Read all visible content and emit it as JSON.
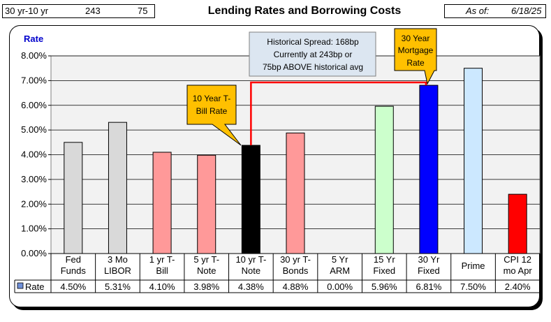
{
  "header": {
    "spread_label": "30 yr-10 yr",
    "spread_current": "243",
    "spread_above": "75",
    "title": "Lending Rates and Borrowing Costs",
    "asof_label": "As of:",
    "asof_date": "6/18/25"
  },
  "colors": {
    "light_gray": "#d9d9d9",
    "pink": "#ff9999",
    "black": "#000000",
    "light_green": "#ccffcc",
    "blue": "#0000ff",
    "light_blue": "#cce8ff",
    "red": "#ff0000",
    "callout_orange": "#ffc000",
    "note_blue": "#dce6f1",
    "spread_line": "#ff0000"
  },
  "chart_data": {
    "type": "bar",
    "ylabel": "Rate",
    "ylim": [
      0,
      8
    ],
    "yticks": [
      "0.00%",
      "1.00%",
      "2.00%",
      "3.00%",
      "4.00%",
      "5.00%",
      "6.00%",
      "7.00%",
      "8.00%"
    ],
    "grid": true,
    "categories": [
      [
        "Fed",
        "Funds"
      ],
      [
        "3 Mo",
        "LIBOR"
      ],
      [
        "1 yr  T-",
        "Bill"
      ],
      [
        "5 yr T-",
        "Note"
      ],
      [
        "10 yr T-",
        "Note"
      ],
      [
        "30 yr T-",
        "Bonds"
      ],
      [
        "5 Yr",
        "ARM"
      ],
      [
        "15 Yr",
        "Fixed"
      ],
      [
        "30 Yr",
        "Fixed"
      ],
      [
        "Prime"
      ],
      [
        "CPI 12",
        "mo Apr"
      ]
    ],
    "series": [
      {
        "name": "Rate",
        "values": [
          4.5,
          5.31,
          4.1,
          3.98,
          4.38,
          4.88,
          0.0,
          5.96,
          6.81,
          7.5,
          2.4
        ],
        "value_labels": [
          "4.50%",
          "5.31%",
          "4.10%",
          "3.98%",
          "4.38%",
          "4.88%",
          "0.00%",
          "5.96%",
          "6.81%",
          "7.50%",
          "2.40%"
        ],
        "bar_colors": [
          "#d9d9d9",
          "#d9d9d9",
          "#ff9999",
          "#ff9999",
          "#000000",
          "#ff9999",
          "#ff9999",
          "#ccffcc",
          "#0000ff",
          "#cce8ff",
          "#ff0000"
        ]
      }
    ],
    "legend_key_color": "#6f8fd8",
    "annotations": {
      "ten_year": [
        "10 Year T-",
        "Bill Rate"
      ],
      "thirty_year": [
        "30 Year",
        "Mortgage",
        "Rate"
      ],
      "spread_note": [
        "Historical Spread: 168bp",
        "Currently at 243bp  or",
        "75bp ABOVE historical avg"
      ]
    }
  }
}
